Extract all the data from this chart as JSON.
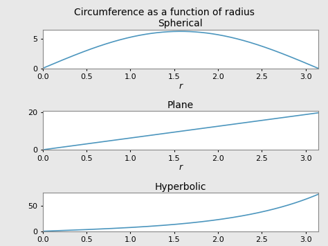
{
  "title": "Circumference as a function of radius",
  "title_fontsize": 10,
  "subplot_titles": [
    "Spherical",
    "Plane",
    "Hyperbolic"
  ],
  "subplot_title_fontsize": 10,
  "xlabel": "r",
  "xlabel_fontstyle": "italic",
  "xlabel_fontsize": 9,
  "r_start": 0.0,
  "r_end": 3.1416,
  "num_points": 300,
  "line_color": "#4C96BE",
  "line_width": 1.2,
  "background_color": "#e8e8e8",
  "axes_background_color": "#ffffff",
  "xticks": [
    0.0,
    0.5,
    1.0,
    1.5,
    2.0,
    2.5,
    3.0
  ],
  "fig_width": 4.74,
  "fig_height": 3.55
}
